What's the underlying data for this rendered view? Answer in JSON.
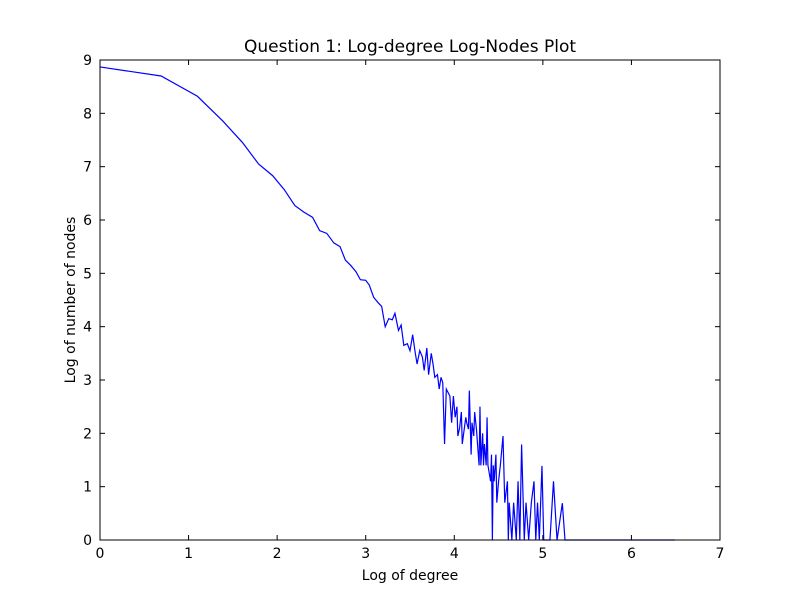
{
  "chart_data": {
    "type": "line",
    "title": "Question 1:  Log-degree Log-Nodes Plot",
    "x_label": "Log of degree",
    "y_label": "Log of number of nodes",
    "xlim": [
      0,
      7
    ],
    "ylim": [
      0,
      9
    ],
    "xticks": [
      0,
      1,
      2,
      3,
      4,
      5,
      6,
      7
    ],
    "yticks": [
      0,
      1,
      2,
      3,
      4,
      5,
      6,
      7,
      8,
      9
    ],
    "series": [
      {
        "color": "#0000ff",
        "x": [
          0,
          0.69,
          1.1,
          1.39,
          1.61,
          1.79,
          1.95,
          2.08,
          2.2,
          2.3,
          2.4,
          2.48,
          2.56,
          2.64,
          2.71,
          2.77,
          2.83,
          2.89,
          2.94,
          3.0,
          3.04,
          3.09,
          3.14,
          3.18,
          3.22,
          3.26,
          3.3,
          3.33,
          3.37,
          3.4,
          3.43,
          3.47,
          3.5,
          3.53,
          3.56,
          3.58,
          3.61,
          3.64,
          3.66,
          3.69,
          3.71,
          3.74,
          3.76,
          3.78,
          3.81,
          3.83,
          3.85,
          3.87,
          3.89,
          3.91,
          3.95,
          3.97,
          3.99,
          4.01,
          4.03,
          4.04,
          4.06,
          4.08,
          4.09,
          4.13,
          4.14,
          4.16,
          4.17,
          4.19,
          4.2,
          4.22,
          4.23,
          4.25,
          4.28,
          4.29,
          4.3,
          4.32,
          4.33,
          4.34,
          4.36,
          4.37,
          4.38,
          4.41,
          4.42,
          4.43,
          4.44,
          4.45,
          4.47,
          4.48,
          4.5,
          4.52,
          4.55,
          4.57,
          4.6,
          4.61,
          4.62,
          4.65,
          4.67,
          4.7,
          4.72,
          4.74,
          4.76,
          4.79,
          4.81,
          4.84,
          4.87,
          4.9,
          4.92,
          4.94,
          4.96,
          4.99,
          5.01,
          5.08,
          5.12,
          5.16,
          5.22,
          5.25,
          6.49
        ],
        "values": [
          8.87,
          8.7,
          8.32,
          7.85,
          7.45,
          7.05,
          6.83,
          6.57,
          6.27,
          6.15,
          6.05,
          5.8,
          5.75,
          5.57,
          5.5,
          5.25,
          5.15,
          5.03,
          4.88,
          4.87,
          4.78,
          4.55,
          4.45,
          4.38,
          4.0,
          4.15,
          4.13,
          4.25,
          3.93,
          4.03,
          3.65,
          3.68,
          3.55,
          3.85,
          3.5,
          3.3,
          3.55,
          3.43,
          3.18,
          3.6,
          3.1,
          3.5,
          3.3,
          3.05,
          3.1,
          2.83,
          3.05,
          2.95,
          1.8,
          2.83,
          2.7,
          2.2,
          2.7,
          2.3,
          2.5,
          1.95,
          2.1,
          2.4,
          1.8,
          2.3,
          2.2,
          2.08,
          2.8,
          1.6,
          2.2,
          1.95,
          2.4,
          2.08,
          1.4,
          2.5,
          1.4,
          2.0,
          1.4,
          1.8,
          1.4,
          2.3,
          1.4,
          1.1,
          1.6,
          0,
          1.4,
          1.1,
          1.6,
          0.7,
          1.1,
          1.4,
          1.95,
          0.7,
          1.1,
          0,
          0.7,
          0,
          0.7,
          0,
          1.1,
          0,
          1.79,
          0,
          0.7,
          0,
          0.7,
          1.1,
          0,
          0.7,
          0,
          1.39,
          0,
          0,
          1.1,
          0,
          0.69,
          0,
          0
        ]
      }
    ]
  }
}
